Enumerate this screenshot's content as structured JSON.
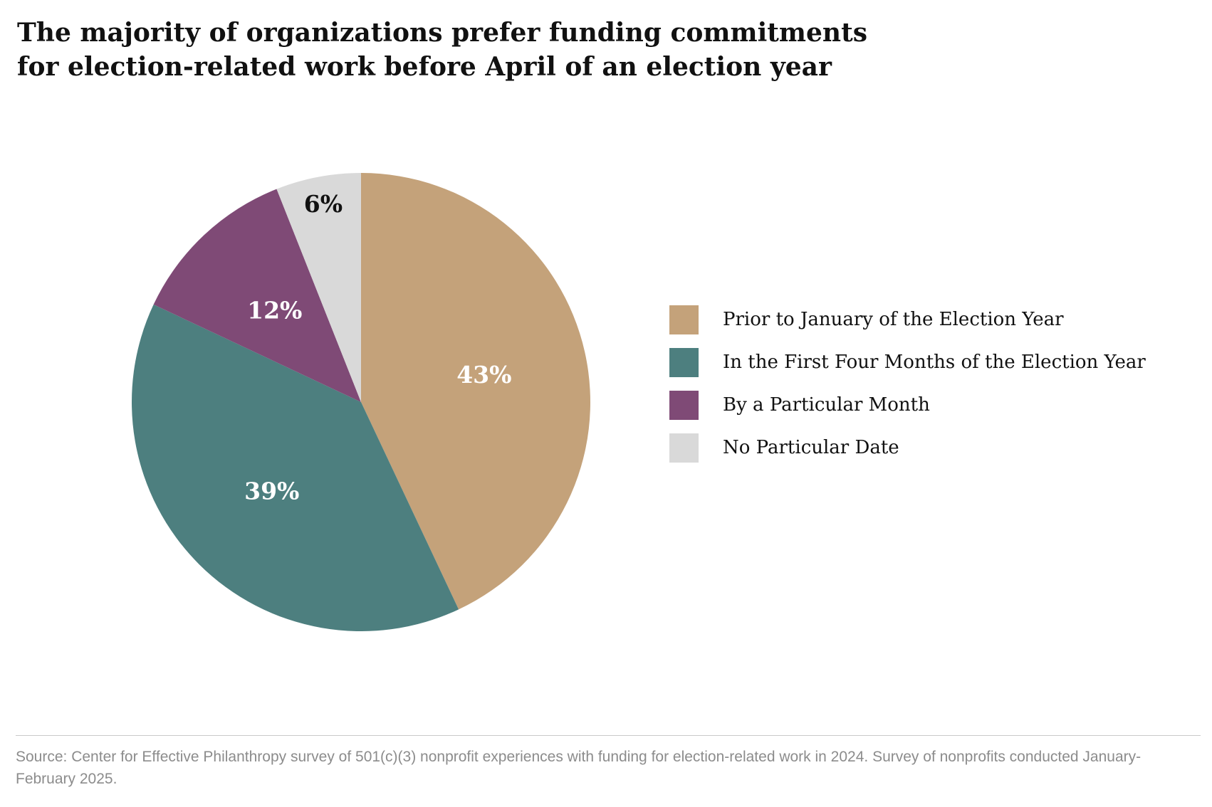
{
  "title_lines": [
    "The majority of organizations prefer funding commitments",
    "for election-related work before April of an election year"
  ],
  "source_text": "Source: Center for Effective Philanthropy survey of 501(c)(3) nonprofit experiences with funding for election-related work in 2024. Survey of nonprofits conducted January-February 2025.",
  "chart_data": {
    "type": "pie",
    "title": "The majority of organizations prefer funding commitments for election-related work before April of an election year",
    "categories": [
      "Prior to January of the Election Year",
      "In the First Four Months of the Election Year",
      "By a Particular Month",
      "No Particular Date"
    ],
    "values": [
      43,
      39,
      12,
      6
    ],
    "labels": [
      "43%",
      "39%",
      "12%",
      "6%"
    ],
    "colors": [
      "#c4a27a",
      "#4d7f7f",
      "#7f4a76",
      "#d9d9d9"
    ],
    "label_colors": [
      "#ffffff",
      "#ffffff",
      "#ffffff",
      "#111111"
    ],
    "legend_position": "right"
  }
}
